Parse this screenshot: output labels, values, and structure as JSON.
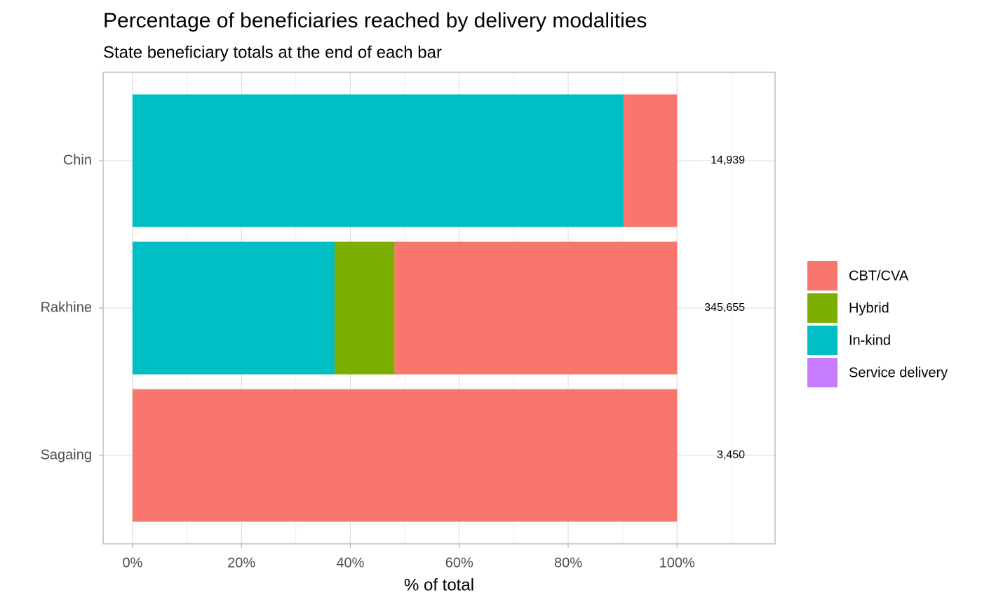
{
  "chart_data": {
    "type": "stacked_bar_horizontal",
    "title": "Percentage of beneficiaries reached by delivery modalities",
    "subtitle": "State beneficiary totals at the end of each bar",
    "x_label": "% of total",
    "categories": [
      "Chin",
      "Rakhine",
      "Sagaing"
    ],
    "series": [
      {
        "name": "CBT/CVA",
        "color": "#F8766D",
        "values": [
          9.8,
          51.9,
          100
        ]
      },
      {
        "name": "Hybrid",
        "color": "#7CAE00",
        "values": [
          0,
          11.0,
          0
        ]
      },
      {
        "name": "In-kind",
        "color": "#00BFC4",
        "values": [
          90.2,
          37.1,
          0
        ]
      },
      {
        "name": "Service delivery",
        "color": "#C77CFF",
        "values": [
          0,
          0,
          0
        ]
      }
    ],
    "totals": {
      "values": [
        14939,
        345655,
        3450
      ],
      "value_labels": [
        "14,939",
        "345,655",
        "3,450"
      ]
    },
    "xlim": [
      -5.4,
      118
    ],
    "xticks": [
      {
        "value": 0,
        "label": "0%"
      },
      {
        "value": 20,
        "label": "20%"
      },
      {
        "value": 40,
        "label": "40%"
      },
      {
        "value": 60,
        "label": "60%"
      },
      {
        "value": 80,
        "label": "80%"
      },
      {
        "value": 100,
        "label": "100%"
      }
    ],
    "minor_xticks": [
      10,
      30,
      50,
      70,
      90,
      110
    ],
    "grid": true,
    "legend_position": "right"
  }
}
